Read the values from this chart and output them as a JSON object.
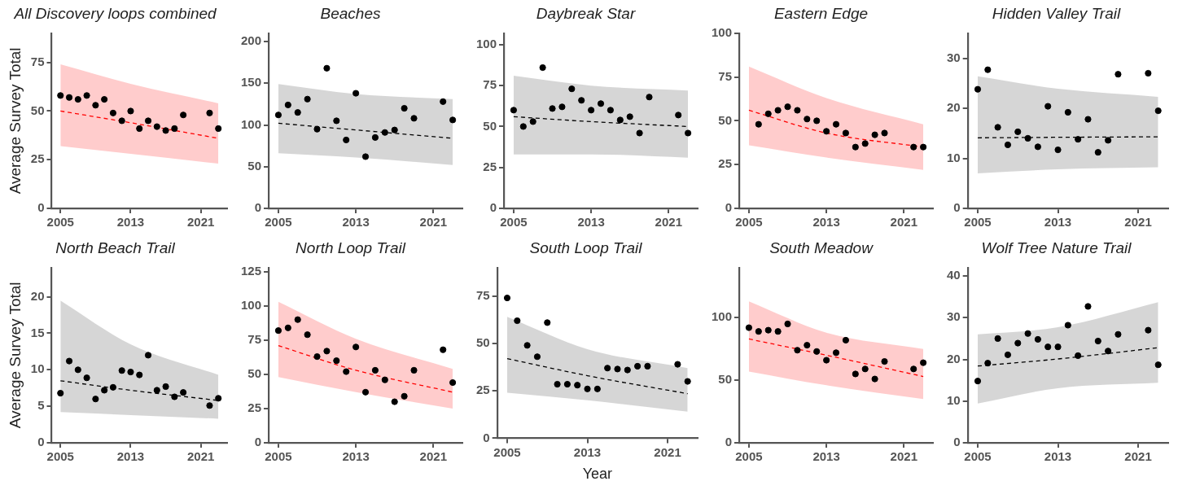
{
  "chart_data": [
    {
      "type": "scatter",
      "title": "All Discovery loops combined",
      "ylabel": "Average Survey Total",
      "xlim": [
        2004,
        2024
      ],
      "xticks": [
        2005,
        2013,
        2021
      ],
      "ylim": [
        0,
        90
      ],
      "yticks": [
        0,
        25,
        50,
        75
      ],
      "legend": false,
      "series": [
        {
          "type": "scatter",
          "marker": "circle",
          "color": "#000000",
          "x": [
            2005,
            2006,
            2007,
            2008,
            2009,
            2010,
            2011,
            2012,
            2013,
            2014,
            2015,
            2016,
            2017,
            2018,
            2019,
            2022,
            2023
          ],
          "values": [
            58,
            57,
            56,
            58,
            53,
            56,
            49,
            45,
            50,
            41,
            45,
            42,
            40,
            41,
            48,
            49,
            41
          ]
        },
        {
          "type": "line",
          "marker": "none",
          "line_style": "dashed",
          "color": "#ff0000",
          "x": [
            2005,
            2013,
            2023
          ],
          "values": [
            50,
            44,
            36
          ],
          "lower": [
            32,
            28,
            23
          ],
          "upper": [
            74,
            64,
            54
          ]
        }
      ]
    },
    {
      "type": "scatter",
      "title": "Beaches",
      "xlim": [
        2004,
        2024
      ],
      "xticks": [
        2005,
        2013,
        2021
      ],
      "ylim": [
        0,
        210
      ],
      "yticks": [
        0,
        50,
        100,
        150,
        200
      ],
      "legend": false,
      "series": [
        {
          "type": "scatter",
          "marker": "circle",
          "color": "#000000",
          "x": [
            2005,
            2006,
            2007,
            2008,
            2009,
            2010,
            2011,
            2012,
            2013,
            2014,
            2015,
            2016,
            2017,
            2018,
            2019,
            2022,
            2023
          ],
          "values": [
            112,
            124,
            115,
            131,
            95,
            168,
            105,
            82,
            138,
            62,
            85,
            91,
            94,
            120,
            108,
            128,
            106
          ]
        },
        {
          "type": "line",
          "marker": "none",
          "line_style": "dashed",
          "color": "#000000",
          "x": [
            2005,
            2013,
            2023
          ],
          "values": [
            102,
            94,
            84
          ],
          "lower": [
            66,
            61,
            52
          ],
          "upper": [
            149,
            137,
            131
          ]
        }
      ]
    },
    {
      "type": "scatter",
      "title": "Daybreak Star",
      "xlim": [
        2004,
        2024
      ],
      "xticks": [
        2005,
        2013,
        2021
      ],
      "ylim": [
        0,
        107
      ],
      "yticks": [
        0,
        25,
        50,
        75,
        100
      ],
      "legend": false,
      "series": [
        {
          "type": "scatter",
          "marker": "circle",
          "color": "#000000",
          "x": [
            2005,
            2006,
            2007,
            2008,
            2009,
            2010,
            2011,
            2012,
            2013,
            2014,
            2015,
            2016,
            2017,
            2018,
            2019,
            2022,
            2023
          ],
          "values": [
            60,
            50,
            53,
            86,
            61,
            62,
            73,
            66,
            60,
            64,
            60,
            54,
            56,
            46,
            68,
            57,
            46
          ]
        },
        {
          "type": "line",
          "marker": "none",
          "line_style": "dashed",
          "color": "#000000",
          "x": [
            2005,
            2013,
            2023
          ],
          "values": [
            56,
            53,
            50
          ],
          "lower": [
            33,
            33,
            31
          ],
          "upper": [
            81,
            75,
            72
          ]
        }
      ]
    },
    {
      "type": "scatter",
      "title": "Eastern Edge",
      "xlim": [
        2004,
        2024
      ],
      "xticks": [
        2005,
        2013,
        2021
      ],
      "ylim": [
        0,
        100
      ],
      "yticks": [
        0,
        25,
        50,
        75,
        100
      ],
      "legend": false,
      "series": [
        {
          "type": "scatter",
          "marker": "circle",
          "color": "#000000",
          "x": [
            2006,
            2007,
            2008,
            2009,
            2010,
            2011,
            2012,
            2013,
            2014,
            2015,
            2016,
            2017,
            2018,
            2019,
            2022,
            2023
          ],
          "values": [
            48,
            54,
            56,
            58,
            56,
            51,
            50,
            44,
            48,
            43,
            35,
            37,
            42,
            43,
            35,
            35
          ]
        },
        {
          "type": "line",
          "marker": "none",
          "line_style": "dashed",
          "color": "#ff0000",
          "x": [
            2005,
            2013,
            2023
          ],
          "values": [
            56,
            43,
            35
          ],
          "lower": [
            36,
            29,
            22
          ],
          "upper": [
            81,
            63,
            48
          ]
        }
      ]
    },
    {
      "type": "scatter",
      "title": "Hidden Valley Trail",
      "xlim": [
        2004,
        2024
      ],
      "xticks": [
        2005,
        2013,
        2021
      ],
      "ylim": [
        0,
        35
      ],
      "yticks": [
        0,
        10,
        20,
        30
      ],
      "legend": false,
      "series": [
        {
          "type": "scatter",
          "marker": "circle",
          "color": "#000000",
          "x": [
            2005,
            2006,
            2007,
            2008,
            2009,
            2010,
            2011,
            2012,
            2013,
            2014,
            2015,
            2016,
            2017,
            2018,
            2019,
            2022,
            2023
          ],
          "values": [
            23.8,
            27.7,
            16.2,
            12.7,
            15.3,
            14.0,
            12.3,
            20.4,
            11.7,
            19.2,
            13.8,
            17.8,
            11.2,
            13.6,
            26.8,
            27.0,
            19.5
          ]
        },
        {
          "type": "line",
          "marker": "none",
          "line_style": "dashed",
          "color": "#000000",
          "x": [
            2005,
            2013,
            2023
          ],
          "values": [
            14.1,
            14.2,
            14.3
          ],
          "lower": [
            7.0,
            7.8,
            8.2
          ],
          "upper": [
            26.4,
            23.9,
            22.3
          ]
        }
      ]
    },
    {
      "type": "scatter",
      "title": "North Beach Trail",
      "ylabel": "Average Survey Total",
      "xlim": [
        2004,
        2024
      ],
      "xticks": [
        2005,
        2013,
        2021
      ],
      "ylim": [
        0,
        24
      ],
      "yticks": [
        0,
        5,
        10,
        15,
        20
      ],
      "legend": false,
      "series": [
        {
          "type": "scatter",
          "marker": "circle",
          "color": "#000000",
          "x": [
            2005,
            2006,
            2007,
            2008,
            2009,
            2010,
            2011,
            2012,
            2013,
            2014,
            2015,
            2016,
            2017,
            2018,
            2019,
            2022,
            2023
          ],
          "values": [
            6.8,
            11.2,
            10.0,
            8.9,
            6.0,
            7.2,
            7.6,
            9.9,
            9.7,
            9.3,
            12.0,
            7.2,
            7.7,
            6.3,
            6.9,
            5.1,
            6.1
          ]
        },
        {
          "type": "line",
          "marker": "none",
          "line_style": "dashed",
          "color": "#000000",
          "x": [
            2005,
            2013,
            2023
          ],
          "values": [
            8.5,
            7.2,
            5.8
          ],
          "lower": [
            4.2,
            3.8,
            3.3
          ],
          "upper": [
            19.5,
            13.5,
            9.3
          ]
        }
      ]
    },
    {
      "type": "scatter",
      "title": "North Loop Trail",
      "xlim": [
        2004,
        2024
      ],
      "xticks": [
        2005,
        2013,
        2021
      ],
      "ylim": [
        0,
        128
      ],
      "yticks": [
        0,
        25,
        50,
        75,
        100,
        125
      ],
      "legend": false,
      "series": [
        {
          "type": "scatter",
          "marker": "circle",
          "color": "#000000",
          "x": [
            2005,
            2006,
            2007,
            2008,
            2009,
            2010,
            2011,
            2012,
            2013,
            2014,
            2015,
            2016,
            2017,
            2018,
            2019,
            2022,
            2023
          ],
          "values": [
            82,
            84,
            90,
            79,
            63,
            67,
            60,
            52,
            70,
            37,
            53,
            46,
            30,
            34,
            53,
            68,
            44
          ]
        },
        {
          "type": "line",
          "marker": "none",
          "line_style": "dashed",
          "color": "#ff0000",
          "x": [
            2005,
            2013,
            2023
          ],
          "values": [
            71,
            53,
            37
          ],
          "lower": [
            48,
            37,
            25
          ],
          "upper": [
            103,
            76,
            54
          ]
        }
      ]
    },
    {
      "type": "scatter",
      "title": "South Loop Trail",
      "xlabel": "Year",
      "xlim": [
        2004,
        2024
      ],
      "xticks": [
        2005,
        2013,
        2021
      ],
      "ylim": [
        0,
        90
      ],
      "yticks": [
        0,
        25,
        50,
        75
      ],
      "legend": false,
      "series": [
        {
          "type": "scatter",
          "marker": "circle",
          "color": "#000000",
          "x": [
            2005,
            2006,
            2007,
            2008,
            2009,
            2010,
            2011,
            2012,
            2013,
            2014,
            2015,
            2016,
            2017,
            2018,
            2019,
            2022,
            2023
          ],
          "values": [
            74,
            62,
            49,
            43,
            61,
            28.5,
            28.5,
            28,
            26,
            26,
            37,
            36.5,
            36,
            38,
            38,
            39,
            30
          ]
        },
        {
          "type": "line",
          "marker": "none",
          "line_style": "dashed",
          "color": "#000000",
          "x": [
            2005,
            2013,
            2023
          ],
          "values": [
            42,
            33,
            23.5
          ],
          "lower": [
            24,
            20,
            14
          ],
          "upper": [
            64,
            47,
            37
          ]
        }
      ]
    },
    {
      "type": "scatter",
      "title": "South Meadow",
      "xlim": [
        2004,
        2024
      ],
      "xticks": [
        2005,
        2013,
        2021
      ],
      "ylim": [
        0,
        140
      ],
      "yticks": [
        0,
        50,
        100
      ],
      "legend": false,
      "series": [
        {
          "type": "scatter",
          "marker": "circle",
          "color": "#000000",
          "x": [
            2005,
            2006,
            2007,
            2008,
            2009,
            2010,
            2011,
            2012,
            2013,
            2014,
            2015,
            2016,
            2017,
            2018,
            2019,
            2022,
            2023
          ],
          "values": [
            92,
            89,
            90,
            89,
            95,
            74,
            78,
            73,
            66,
            72,
            82,
            55,
            59,
            51,
            65,
            59,
            64
          ]
        },
        {
          "type": "line",
          "marker": "none",
          "line_style": "dashed",
          "color": "#ff0000",
          "x": [
            2005,
            2013,
            2023
          ],
          "values": [
            83,
            70,
            53
          ],
          "lower": [
            57,
            46,
            35
          ],
          "upper": [
            113,
            88,
            75
          ]
        }
      ]
    },
    {
      "type": "scatter",
      "title": "Wolf Tree Nature Trail",
      "xlim": [
        2004,
        2024
      ],
      "xticks": [
        2005,
        2013,
        2021
      ],
      "ylim": [
        0,
        42
      ],
      "yticks": [
        0,
        10,
        20,
        30,
        40
      ],
      "legend": false,
      "series": [
        {
          "type": "scatter",
          "marker": "circle",
          "color": "#000000",
          "x": [
            2005,
            2006,
            2007,
            2008,
            2009,
            2010,
            2011,
            2012,
            2013,
            2014,
            2015,
            2016,
            2017,
            2018,
            2019,
            2022,
            2023
          ],
          "values": [
            14.8,
            19.1,
            25,
            21.1,
            23.9,
            26.2,
            24.8,
            23,
            23,
            28.2,
            20.9,
            32.7,
            24.4,
            22,
            26,
            27,
            18.7
          ]
        },
        {
          "type": "line",
          "marker": "none",
          "line_style": "dashed",
          "color": "#000000",
          "x": [
            2005,
            2013,
            2023
          ],
          "values": [
            18.4,
            20.1,
            22.8
          ],
          "lower": [
            9.4,
            13.1,
            14.4
          ],
          "upper": [
            26,
            27.7,
            33.7
          ]
        }
      ]
    }
  ]
}
